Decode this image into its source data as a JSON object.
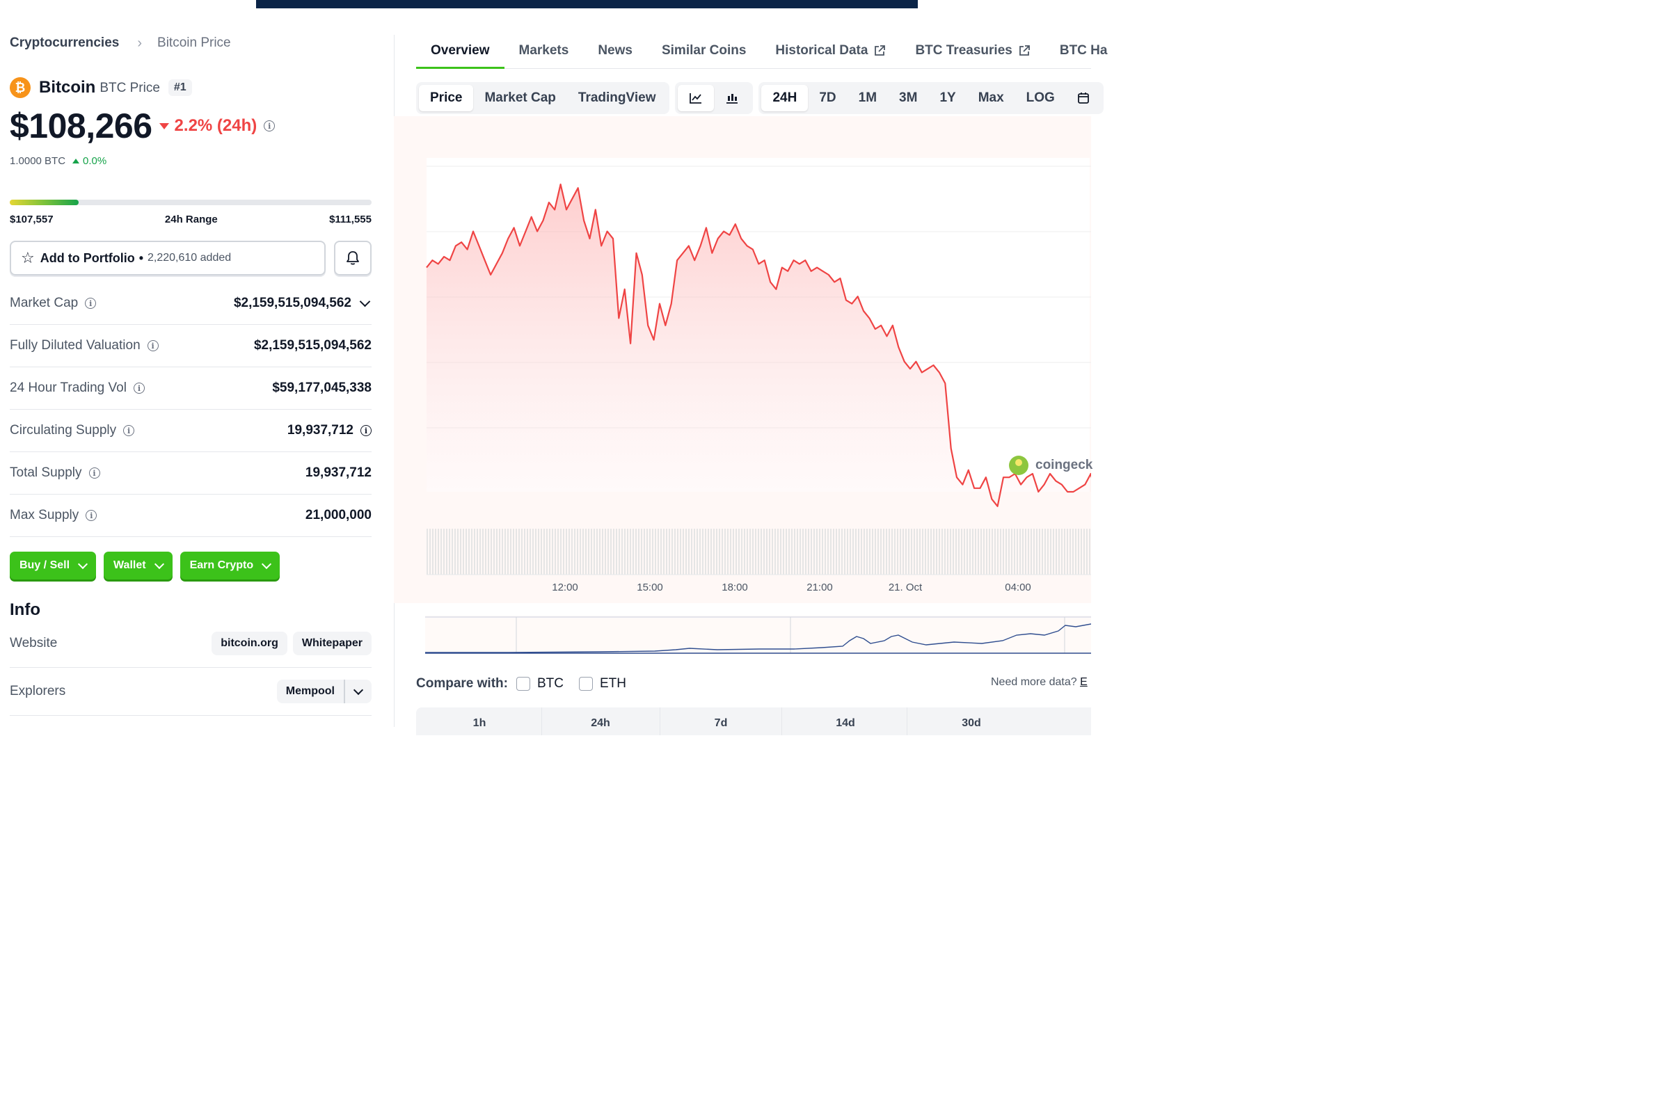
{
  "breadcrumb": {
    "root": "Cryptocurrencies",
    "current": "Bitcoin Price"
  },
  "coin": {
    "name": "Bitcoin",
    "ticker_label": "BTC Price",
    "rank": "#1",
    "logo_glyph": "₿",
    "logo_color": "#f7931a"
  },
  "price": {
    "value": "$108,266",
    "change_24h": "2.2% (24h)",
    "direction": "down",
    "btc_value": "1.0000 BTC",
    "btc_change": "0.0%"
  },
  "range_24h": {
    "low": "$107,557",
    "label": "24h Range",
    "high": "$111,555",
    "position": 0.19
  },
  "portfolio": {
    "label": "Add to Portfolio",
    "dot": "•",
    "added": "2,220,610 added"
  },
  "stats": [
    {
      "label": "Market Cap",
      "value": "$2,159,515,094,562"
    },
    {
      "label": "Fully Diluted Valuation",
      "value": "$2,159,515,094,562"
    },
    {
      "label": "24 Hour Trading Vol",
      "value": "$59,177,045,338"
    },
    {
      "label": "Circulating Supply",
      "value": "19,937,712"
    },
    {
      "label": "Total Supply",
      "value": "19,937,712"
    },
    {
      "label": "Max Supply",
      "value": "21,000,000"
    }
  ],
  "actions": {
    "buy_sell": "Buy / Sell",
    "wallet": "Wallet",
    "earn": "Earn Crypto"
  },
  "info": {
    "title": "Info",
    "website_label": "Website",
    "website_links": [
      "bitcoin.org",
      "Whitepaper"
    ],
    "explorers_label": "Explorers",
    "explorer": "Mempool"
  },
  "tabs": [
    "Overview",
    "Markets",
    "News",
    "Similar Coins",
    "Historical Data",
    "BTC Treasuries",
    "BTC Ha"
  ],
  "chart_controls": {
    "types": [
      "Price",
      "Market Cap",
      "TradingView"
    ],
    "ranges": [
      "24H",
      "7D",
      "1M",
      "3M",
      "1Y",
      "Max",
      "LOG"
    ]
  },
  "watermark": "coingeck",
  "compare": {
    "label": "Compare with:",
    "options": [
      "BTC",
      "ETH"
    ],
    "need_more": "Need more data?",
    "link": "E"
  },
  "perf_headers": [
    "1h",
    "24h",
    "7d",
    "14d",
    "30d"
  ],
  "colors": {
    "accent_green": "#3cc21a",
    "down_red": "#ef4444",
    "up_green": "#16a34a",
    "nav_line": "#2f4d8f"
  },
  "chart_data": {
    "type": "area",
    "title": "",
    "xlabel": "",
    "ylabel": "",
    "x_ticks": [
      "12:00",
      "15:00",
      "18:00",
      "21:00",
      "21. Oct",
      "04:00"
    ],
    "ylim": [
      107300,
      111800
    ],
    "series": [
      {
        "values": [
          110400,
          110500,
          110450,
          110550,
          110500,
          110700,
          110750,
          110650,
          110900,
          110700,
          110500,
          110300,
          110450,
          110600,
          110800,
          110950,
          110700,
          110900,
          111100,
          110900,
          111050,
          111300,
          111200,
          111550,
          111200,
          111350,
          111500,
          111050,
          110800,
          111200,
          110700,
          110900,
          110800,
          109700,
          110100,
          109350,
          110600,
          110300,
          109600,
          109400,
          109900,
          109600,
          109900,
          110500,
          110600,
          110700,
          110500,
          110700,
          110950,
          110600,
          110800,
          110900,
          110850,
          111000,
          110800,
          110700,
          110650,
          110450,
          110500,
          110200,
          110100,
          110400,
          110350,
          110500,
          110450,
          110500,
          110350,
          110400,
          110350,
          110300,
          110200,
          110250,
          109950,
          109900,
          110000,
          109800,
          109700,
          109550,
          109600,
          109450,
          109600,
          109300,
          109100,
          109000,
          109100,
          108950,
          109000,
          109050,
          108950,
          108800,
          107900,
          107500,
          107400,
          107600,
          107350,
          107350,
          107500,
          107200,
          107100,
          107500,
          107500,
          107550,
          107400,
          107500,
          107550,
          107300,
          107400,
          107550,
          107450,
          107400,
          107300,
          107300,
          107350,
          107400,
          107550,
          107200
        ]
      }
    ]
  }
}
